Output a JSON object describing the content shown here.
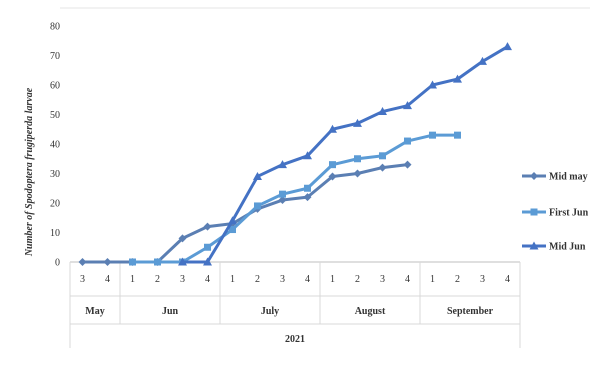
{
  "chart_data": {
    "type": "line",
    "ylabel": "Number of Spodoptera frugiperda larvae",
    "ylim": [
      0,
      80
    ],
    "yticks": [
      0,
      10,
      20,
      30,
      40,
      50,
      60,
      70,
      80
    ],
    "grid": false,
    "legend_position": "right",
    "x_week_labels": [
      "3",
      "4",
      "1",
      "2",
      "3",
      "4",
      "1",
      "2",
      "3",
      "4",
      "1",
      "2",
      "3",
      "4",
      "1",
      "2",
      "3",
      "4"
    ],
    "month_groups": [
      {
        "label": "May",
        "start": 0,
        "count": 2
      },
      {
        "label": "Jun",
        "start": 2,
        "count": 4
      },
      {
        "label": "July",
        "start": 6,
        "count": 4
      },
      {
        "label": "August",
        "start": 10,
        "count": 4
      },
      {
        "label": "September",
        "start": 14,
        "count": 4
      }
    ],
    "year_label": "2021",
    "series": [
      {
        "name": "Mid may",
        "color": "#5b7fb3",
        "marker": "diamond",
        "values": [
          0,
          0,
          0,
          0,
          8,
          12,
          13,
          18,
          21,
          22,
          29,
          30,
          32,
          33,
          null,
          null,
          null,
          null
        ]
      },
      {
        "name": "First Jun",
        "color": "#5b9bd5",
        "marker": "square",
        "values": [
          null,
          null,
          0,
          0,
          0,
          5,
          11,
          19,
          23,
          25,
          33,
          35,
          36,
          41,
          43,
          43,
          null,
          null
        ]
      },
      {
        "name": "Mid Jun",
        "color": "#4472c4",
        "marker": "triangle",
        "values": [
          null,
          null,
          null,
          null,
          0,
          0,
          14,
          29,
          33,
          36,
          45,
          47,
          51,
          53,
          60,
          62,
          68,
          73
        ]
      }
    ]
  }
}
